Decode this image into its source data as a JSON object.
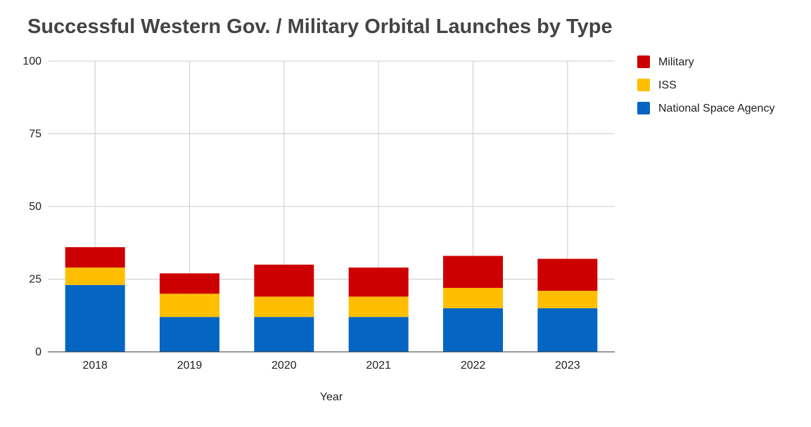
{
  "chart_data": {
    "type": "bar",
    "stacked": true,
    "title": "Successful Western Gov. / Military Orbital Launches by Type",
    "xlabel": "Year",
    "ylabel": "",
    "categories": [
      "2018",
      "2019",
      "2020",
      "2021",
      "2022",
      "2023"
    ],
    "series": [
      {
        "name": "National Space Agency",
        "color": "#0565c2",
        "values": [
          23,
          12,
          12,
          12,
          15,
          15
        ]
      },
      {
        "name": "ISS",
        "color": "#ffbf00",
        "values": [
          6,
          8,
          7,
          7,
          7,
          6
        ]
      },
      {
        "name": "Military",
        "color": "#cc0000",
        "values": [
          7,
          7,
          11,
          10,
          11,
          11
        ]
      }
    ],
    "ylim": [
      0,
      100
    ],
    "yticks": [
      0,
      25,
      50,
      75,
      100
    ],
    "grid": true,
    "legend_position": "right"
  }
}
